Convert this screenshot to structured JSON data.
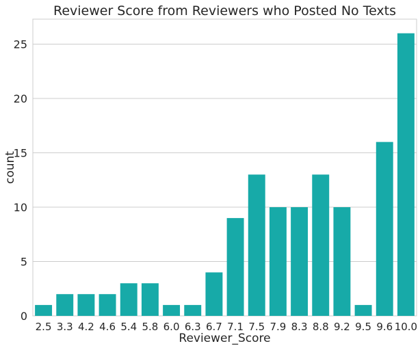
{
  "chart_data": {
    "type": "bar",
    "title": "Reviewer Score from Reviewers who Posted No Texts",
    "xlabel": "Reviewer_Score",
    "ylabel": "count",
    "categories": [
      "2.5",
      "3.3",
      "4.2",
      "4.6",
      "5.4",
      "5.8",
      "6.0",
      "6.3",
      "6.7",
      "7.1",
      "7.5",
      "7.9",
      "8.3",
      "8.8",
      "9.2",
      "9.5",
      "9.6",
      "10.0"
    ],
    "values": [
      1,
      2,
      2,
      2,
      3,
      3,
      1,
      1,
      4,
      9,
      13,
      10,
      10,
      13,
      10,
      1,
      16,
      26
    ],
    "ylim": [
      0,
      27.3
    ],
    "yticks": [
      0,
      5,
      10,
      15,
      20,
      25
    ],
    "grid": true,
    "bar_color": "#17aaa8"
  }
}
